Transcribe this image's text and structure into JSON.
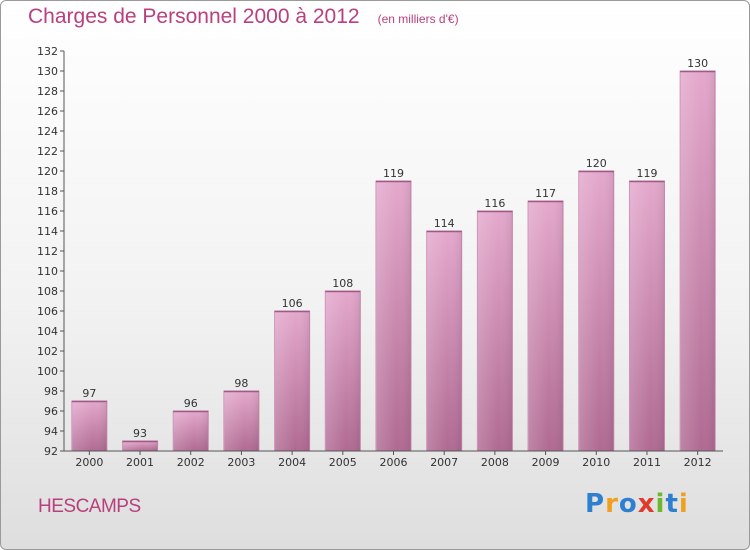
{
  "header": {
    "title": "Charges de Personnel 2000 à 2012",
    "subtitle": "(en milliers d'€)"
  },
  "footer": {
    "commune": "HESCAMPS",
    "brand_letters": [
      {
        "ch": "P",
        "color": "#2e7fd0"
      },
      {
        "ch": "r",
        "color": "#f0a020"
      },
      {
        "ch": "o",
        "color": "#2e7fd0"
      },
      {
        "ch": "x",
        "color": "#e03a2a"
      },
      {
        "ch": "i",
        "color": "#6bb82e"
      },
      {
        "ch": "t",
        "color": "#2e7fd0"
      },
      {
        "ch": "i",
        "color": "#f0a020"
      }
    ]
  },
  "chart_data": {
    "type": "bar",
    "title": "Charges de Personnel 2000 à 2012",
    "subtitle": "(en milliers d'€)",
    "categories": [
      "2000",
      "2001",
      "2002",
      "2003",
      "2004",
      "2005",
      "2006",
      "2007",
      "2008",
      "2009",
      "2010",
      "2011",
      "2012"
    ],
    "values": [
      97,
      93,
      96,
      98,
      106,
      108,
      119,
      114,
      116,
      117,
      120,
      119,
      130
    ],
    "ylim": [
      92,
      132
    ],
    "yticks": [
      92,
      94,
      96,
      98,
      100,
      102,
      104,
      106,
      108,
      110,
      112,
      114,
      116,
      118,
      120,
      122,
      124,
      126,
      128,
      130,
      132
    ],
    "grid": false,
    "legend": "none",
    "bar_color_top": "#e4a8cc",
    "bar_color_bottom": "#b06a92",
    "axis_color": "#555555"
  }
}
